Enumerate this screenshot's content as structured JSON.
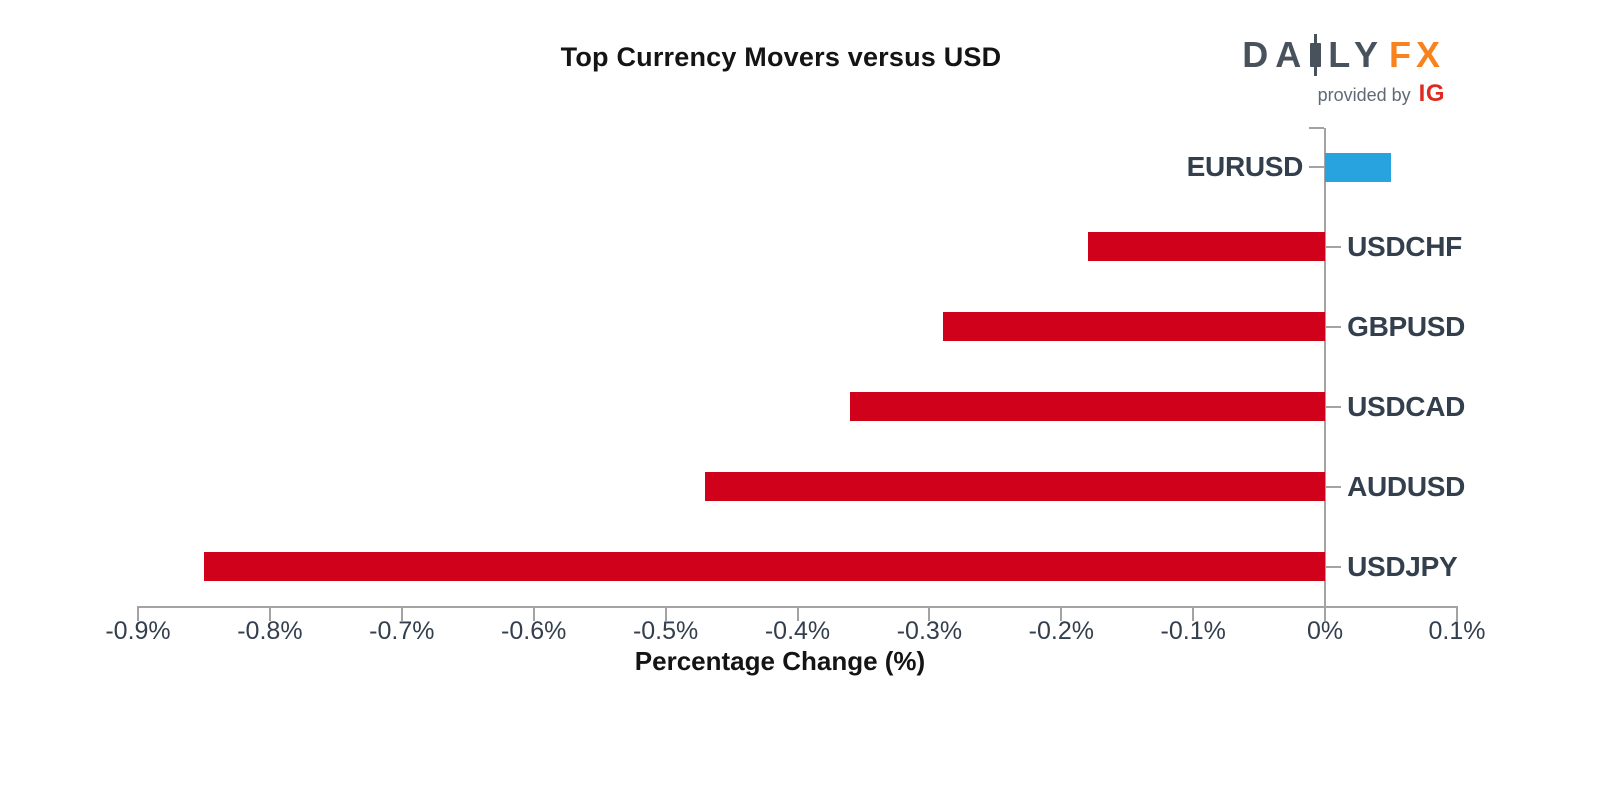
{
  "header": {
    "title": "Top Currency Movers versus USD"
  },
  "logo": {
    "name_part1": "DA",
    "name_part2": "LY",
    "name_part3": "FX",
    "provided_by": "provided by",
    "ig": "IG"
  },
  "chart_data": {
    "type": "bar",
    "orientation": "horizontal",
    "title": "Top Currency Movers versus USD",
    "xlabel": "Percentage Change (%)",
    "categories": [
      "EURUSD",
      "USDCHF",
      "GBPUSD",
      "USDCAD",
      "AUDUSD",
      "USDJPY"
    ],
    "values": [
      0.05,
      -0.18,
      -0.29,
      -0.36,
      -0.47,
      -0.85
    ],
    "value_unit": "%",
    "xlim": [
      -0.9,
      0.1
    ],
    "xtick_values": [
      -0.9,
      -0.8,
      -0.7,
      -0.6,
      -0.5,
      -0.4,
      -0.3,
      -0.2,
      -0.1,
      0,
      0.1
    ],
    "xtick_labels": [
      "-0.9%",
      "-0.8%",
      "-0.7%",
      "-0.6%",
      "-0.5%",
      "-0.4%",
      "-0.3%",
      "-0.2%",
      "-0.1%",
      "0%",
      "0.1%"
    ],
    "grid": false,
    "legend": false,
    "colors": {
      "positive_bar": "#29a3e0",
      "negative_bar": "#d0021b",
      "axis": "#a3a3a3",
      "category_label": "#333f4d",
      "tick_label": "#333f4d",
      "title": "#141414"
    }
  }
}
